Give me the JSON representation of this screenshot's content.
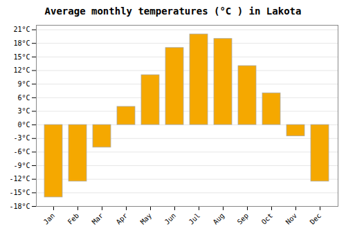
{
  "chart_data": {
    "type": "bar",
    "title": "Average monthly temperatures (°C ) in Lakota",
    "categories": [
      "Jan",
      "Feb",
      "Mar",
      "Apr",
      "May",
      "Jun",
      "Jul",
      "Aug",
      "Sep",
      "Oct",
      "Nov",
      "Dec"
    ],
    "values": [
      -16,
      -12.5,
      -5,
      4,
      11,
      17,
      20,
      19,
      13,
      7,
      -2.5,
      -12.5
    ],
    "color": "#F5A800",
    "ylim": [
      -18,
      22
    ],
    "yticks": [
      {
        "value": -18,
        "label": "-18°C"
      },
      {
        "value": -15,
        "label": "-15°C"
      },
      {
        "value": -12,
        "label": "-12°C"
      },
      {
        "value": -9,
        "label": "-9°C"
      },
      {
        "value": -6,
        "label": "-6°C"
      },
      {
        "value": -3,
        "label": "-3°C"
      },
      {
        "value": 0,
        "label": "0°C"
      },
      {
        "value": 3,
        "label": "3°C"
      },
      {
        "value": 6,
        "label": "6°C"
      },
      {
        "value": 9,
        "label": "9°C"
      },
      {
        "value": 12,
        "label": "12°C"
      },
      {
        "value": 15,
        "label": "15°C"
      },
      {
        "value": 18,
        "label": "18°C"
      },
      {
        "value": 21,
        "label": "21°C"
      }
    ],
    "grid": true
  }
}
